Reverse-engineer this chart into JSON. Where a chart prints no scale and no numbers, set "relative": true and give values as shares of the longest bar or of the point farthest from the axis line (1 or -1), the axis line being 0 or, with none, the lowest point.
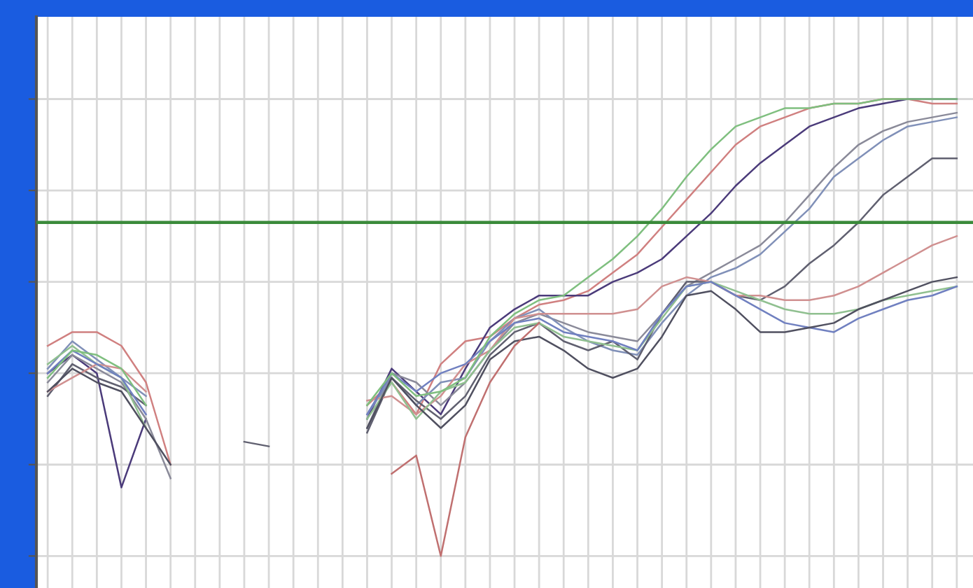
{
  "chart_data": {
    "type": "line",
    "relative": true,
    "grid": true,
    "legend": false,
    "marker": "none",
    "line_style": "solid",
    "categories": [
      null,
      null,
      null,
      null,
      null,
      null,
      null,
      null,
      null,
      null,
      null,
      null,
      null,
      null,
      null,
      null,
      null,
      null,
      null,
      null,
      null,
      null,
      null,
      null,
      null,
      null,
      null,
      null,
      null,
      null,
      null,
      null,
      null,
      null,
      null,
      null,
      null,
      null
    ],
    "ref_lines": [
      {
        "axis": "y",
        "value": 0.73,
        "color": "#3a8a3a"
      }
    ],
    "series": [
      {
        "color": "#7fbf7f",
        "values": [
          0.39,
          0.45,
          0.44,
          0.41,
          0.33,
          null,
          null,
          null,
          null,
          null,
          null,
          null,
          null,
          0.33,
          0.4,
          0.35,
          0.36,
          0.39,
          0.48,
          0.53,
          0.56,
          0.57,
          0.61,
          0.65,
          0.7,
          0.76,
          0.83,
          0.89,
          0.94,
          0.96,
          0.98,
          0.98,
          0.99,
          0.99,
          1.0,
          1.0,
          1.0,
          1.0
        ]
      },
      {
        "color": "#d08080",
        "values": [
          0.46,
          0.49,
          0.49,
          0.46,
          0.38,
          0.2,
          null,
          null,
          null,
          null,
          null,
          null,
          null,
          0.33,
          0.38,
          0.31,
          0.42,
          0.47,
          0.48,
          0.52,
          0.55,
          0.56,
          0.58,
          0.62,
          0.66,
          0.72,
          0.78,
          0.84,
          0.9,
          0.94,
          0.96,
          0.98,
          0.99,
          0.99,
          1.0,
          1.0,
          0.99,
          0.99
        ]
      },
      {
        "color": "#4b3b7a",
        "values": [
          0.4,
          0.44,
          0.4,
          0.15,
          0.3,
          null,
          null,
          null,
          null,
          null,
          null,
          null,
          null,
          0.3,
          0.41,
          0.36,
          0.31,
          0.41,
          0.5,
          0.54,
          0.57,
          0.57,
          0.57,
          0.6,
          0.62,
          0.65,
          0.7,
          0.75,
          0.81,
          0.86,
          0.9,
          0.94,
          0.96,
          0.98,
          0.99,
          1.0,
          1.0,
          1.0
        ]
      },
      {
        "color": "#8a8a99",
        "values": [
          0.38,
          0.44,
          0.41,
          0.38,
          0.3,
          0.17,
          null,
          null,
          null,
          null,
          null,
          null,
          null,
          0.28,
          0.4,
          0.38,
          0.33,
          0.38,
          0.45,
          0.51,
          0.53,
          0.51,
          0.49,
          0.48,
          0.47,
          0.53,
          0.59,
          0.62,
          0.65,
          0.68,
          0.73,
          0.79,
          0.85,
          0.9,
          0.93,
          0.95,
          0.96,
          0.97
        ]
      },
      {
        "color": "#8090b8",
        "values": [
          0.41,
          0.47,
          0.43,
          0.39,
          0.35,
          null,
          null,
          null,
          null,
          null,
          null,
          null,
          null,
          0.31,
          0.39,
          0.33,
          0.38,
          0.39,
          0.47,
          0.52,
          0.54,
          0.5,
          0.47,
          0.45,
          0.44,
          0.51,
          0.57,
          0.61,
          0.63,
          0.66,
          0.71,
          0.76,
          0.83,
          0.87,
          0.91,
          0.94,
          0.95,
          0.96
        ]
      },
      {
        "color": "#606070",
        "values": [
          0.35,
          0.42,
          0.39,
          0.37,
          0.33,
          null,
          null,
          null,
          0.25,
          0.24,
          null,
          null,
          null,
          0.27,
          0.39,
          0.34,
          0.3,
          0.35,
          0.44,
          0.49,
          0.51,
          0.47,
          0.45,
          0.47,
          0.43,
          0.53,
          0.6,
          0.6,
          0.57,
          0.56,
          0.59,
          0.64,
          0.68,
          0.73,
          0.79,
          0.83,
          0.87,
          0.87
        ]
      },
      {
        "color": "#d09090",
        "values": [
          0.36,
          0.39,
          0.42,
          0.41,
          0.36,
          null,
          null,
          null,
          null,
          null,
          null,
          null,
          null,
          0.34,
          0.35,
          0.31,
          0.35,
          0.42,
          0.45,
          0.52,
          0.53,
          0.53,
          0.53,
          0.53,
          0.54,
          0.59,
          0.61,
          0.6,
          0.57,
          0.57,
          0.56,
          0.56,
          0.57,
          0.59,
          0.62,
          0.65,
          0.68,
          0.7
        ]
      },
      {
        "color": "#90c090",
        "values": [
          0.42,
          0.46,
          0.42,
          0.39,
          0.28,
          null,
          null,
          null,
          null,
          null,
          null,
          null,
          null,
          0.3,
          0.38,
          0.3,
          0.36,
          0.38,
          0.45,
          0.5,
          0.51,
          0.48,
          0.47,
          0.46,
          0.45,
          0.52,
          0.59,
          0.6,
          0.58,
          0.56,
          0.54,
          0.53,
          0.53,
          0.54,
          0.56,
          0.57,
          0.58,
          0.59
        ]
      },
      {
        "color": "#7080c0",
        "values": [
          0.4,
          0.45,
          0.42,
          0.39,
          0.31,
          null,
          null,
          null,
          null,
          null,
          null,
          null,
          null,
          0.31,
          0.4,
          0.36,
          0.4,
          0.42,
          0.47,
          0.51,
          0.52,
          0.49,
          0.48,
          0.47,
          0.45,
          0.53,
          0.59,
          0.6,
          0.57,
          0.54,
          0.51,
          0.5,
          0.49,
          0.52,
          0.54,
          0.56,
          0.57,
          0.59
        ]
      },
      {
        "color": "#505060",
        "values": [
          0.36,
          0.41,
          0.38,
          0.36,
          0.28,
          0.2,
          null,
          null,
          null,
          null,
          null,
          null,
          null,
          0.28,
          0.39,
          0.33,
          0.28,
          0.33,
          0.43,
          0.47,
          0.48,
          0.45,
          0.41,
          0.39,
          0.41,
          0.48,
          0.57,
          0.58,
          0.54,
          0.49,
          0.49,
          0.5,
          0.51,
          0.54,
          0.56,
          0.58,
          0.6,
          0.61
        ]
      },
      {
        "color": "#c07070",
        "values": [
          null,
          null,
          null,
          null,
          null,
          null,
          null,
          null,
          null,
          null,
          null,
          null,
          null,
          null,
          0.18,
          0.22,
          0.0,
          0.26,
          0.38,
          0.46,
          0.51,
          null,
          null,
          null,
          null,
          null,
          null,
          null,
          null,
          null,
          null,
          null,
          null,
          null,
          null,
          null,
          null,
          null
        ]
      }
    ]
  }
}
